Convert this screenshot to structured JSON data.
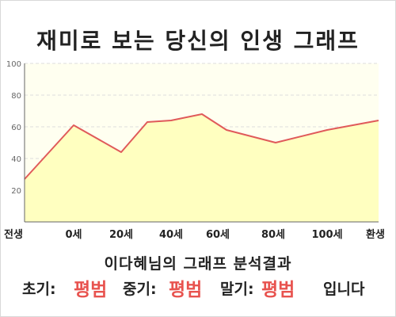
{
  "title": "재미로 보는 당신의 인생 그래프",
  "chart_data": {
    "type": "area",
    "ylim": [
      0,
      100
    ],
    "y_ticks": [
      "20",
      "40",
      "60",
      "80",
      "100"
    ],
    "x_tick_labels": [
      "전생",
      "0세",
      "20세",
      "40세",
      "60세",
      "80세",
      "100세",
      "환생"
    ],
    "x": [
      -27,
      0,
      30,
      37,
      45,
      55,
      60,
      80,
      100,
      120
    ],
    "values": [
      27,
      61,
      44,
      63,
      64,
      68,
      58,
      50,
      58,
      64
    ],
    "colors": {
      "line": "#e05a5a",
      "fill": "#ffffc0",
      "background": "#fffff0",
      "grid": "#dddddd"
    }
  },
  "result": {
    "heading": "이다혜님의 그래프 분석결과",
    "early_label": "초기:",
    "early_value": "평범",
    "middle_label": "중기:",
    "middle_value": "평범",
    "late_label": "말기:",
    "late_value": "평범",
    "suffix": "입니다"
  }
}
